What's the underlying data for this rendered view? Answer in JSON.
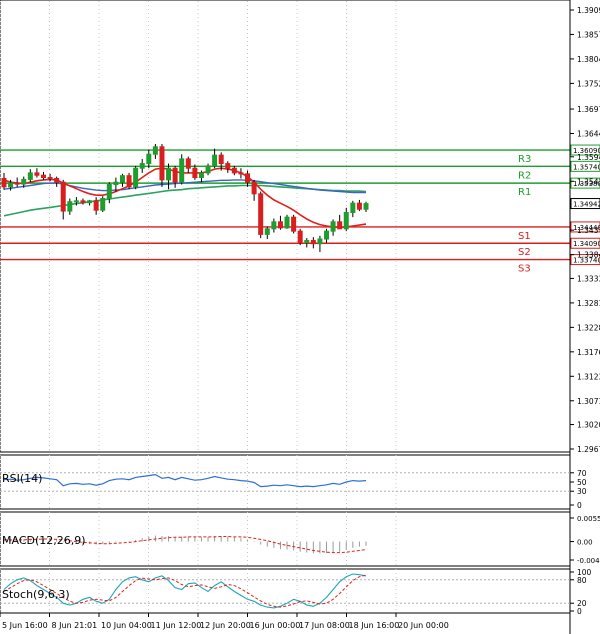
{
  "chart_data": [
    {
      "type": "candlestick",
      "panel": "price",
      "y_ticks": [
        "1.39095",
        "1.38570",
        "1.38045",
        "1.37520",
        "1.36970",
        "1.36445",
        "1.35945",
        "1.35420",
        "1.34895",
        "1.34370",
        "1.33845",
        "1.33335",
        "1.32810",
        "1.32285",
        "1.31760",
        "1.31235",
        "1.30710",
        "1.30200",
        "1.29675"
      ],
      "ylim": [
        1.29675,
        1.39095
      ],
      "x_ticks": [
        "5 Jun 16:00",
        "8 Jun 21:01",
        "10 Jun 04:00",
        "11 Jun 12:00",
        "12 Jun 20:00",
        "16 Jun 00:00",
        "17 Jun 08:00",
        "18 Jun 16:00",
        "20 Jun 00:00"
      ],
      "current_price": "1.34942",
      "levels": [
        {
          "name": "R3",
          "value": 1.3609,
          "label": "1.36090",
          "kind": "resistance",
          "color": "#1f9d2e"
        },
        {
          "name": "R2",
          "value": 1.3574,
          "label": "1.35740",
          "kind": "resistance",
          "color": "#1f9d2e"
        },
        {
          "name": "R1",
          "value": 1.3538,
          "label": "1.35380",
          "kind": "resistance",
          "color": "#1f9d2e"
        },
        {
          "name": "S1",
          "value": 1.3444,
          "label": "1.34440",
          "kind": "support",
          "color": "#d81e1e"
        },
        {
          "name": "S2",
          "value": 1.3409,
          "label": "1.34090",
          "kind": "support",
          "color": "#d81e1e"
        },
        {
          "name": "S3",
          "value": 1.3374,
          "label": "1.33740",
          "kind": "support",
          "color": "#d81e1e"
        }
      ],
      "candles": [
        {
          "o": 1.3548,
          "h": 1.356,
          "l": 1.3524,
          "c": 1.353
        },
        {
          "o": 1.353,
          "h": 1.3545,
          "l": 1.3522,
          "c": 1.3538
        },
        {
          "o": 1.3538,
          "h": 1.355,
          "l": 1.353,
          "c": 1.3536
        },
        {
          "o": 1.3536,
          "h": 1.3552,
          "l": 1.3528,
          "c": 1.3546
        },
        {
          "o": 1.3546,
          "h": 1.3568,
          "l": 1.354,
          "c": 1.356
        },
        {
          "o": 1.356,
          "h": 1.357,
          "l": 1.355,
          "c": 1.3555
        },
        {
          "o": 1.3555,
          "h": 1.3562,
          "l": 1.3545,
          "c": 1.355
        },
        {
          "o": 1.355,
          "h": 1.3558,
          "l": 1.3542,
          "c": 1.3548
        },
        {
          "o": 1.3548,
          "h": 1.3552,
          "l": 1.353,
          "c": 1.354
        },
        {
          "o": 1.354,
          "h": 1.3545,
          "l": 1.346,
          "c": 1.3478
        },
        {
          "o": 1.3478,
          "h": 1.3505,
          "l": 1.347,
          "c": 1.3498
        },
        {
          "o": 1.3498,
          "h": 1.3508,
          "l": 1.349,
          "c": 1.35
        },
        {
          "o": 1.35,
          "h": 1.3505,
          "l": 1.3492,
          "c": 1.3496
        },
        {
          "o": 1.3496,
          "h": 1.3502,
          "l": 1.349,
          "c": 1.35
        },
        {
          "o": 1.35,
          "h": 1.3508,
          "l": 1.347,
          "c": 1.348
        },
        {
          "o": 1.348,
          "h": 1.351,
          "l": 1.3476,
          "c": 1.3505
        },
        {
          "o": 1.3505,
          "h": 1.354,
          "l": 1.3495,
          "c": 1.3535
        },
        {
          "o": 1.3535,
          "h": 1.355,
          "l": 1.352,
          "c": 1.354
        },
        {
          "o": 1.354,
          "h": 1.3558,
          "l": 1.353,
          "c": 1.3554
        },
        {
          "o": 1.3554,
          "h": 1.356,
          "l": 1.3525,
          "c": 1.353
        },
        {
          "o": 1.353,
          "h": 1.3575,
          "l": 1.3525,
          "c": 1.357
        },
        {
          "o": 1.357,
          "h": 1.359,
          "l": 1.356,
          "c": 1.358
        },
        {
          "o": 1.358,
          "h": 1.361,
          "l": 1.357,
          "c": 1.36
        },
        {
          "o": 1.36,
          "h": 1.3622,
          "l": 1.359,
          "c": 1.3616
        },
        {
          "o": 1.3616,
          "h": 1.3622,
          "l": 1.353,
          "c": 1.3545
        },
        {
          "o": 1.3545,
          "h": 1.358,
          "l": 1.3525,
          "c": 1.357
        },
        {
          "o": 1.357,
          "h": 1.3575,
          "l": 1.3528,
          "c": 1.354
        },
        {
          "o": 1.354,
          "h": 1.36,
          "l": 1.3535,
          "c": 1.359
        },
        {
          "o": 1.359,
          "h": 1.3595,
          "l": 1.356,
          "c": 1.357
        },
        {
          "o": 1.357,
          "h": 1.3578,
          "l": 1.3545,
          "c": 1.355
        },
        {
          "o": 1.355,
          "h": 1.3565,
          "l": 1.354,
          "c": 1.356
        },
        {
          "o": 1.356,
          "h": 1.358,
          "l": 1.3555,
          "c": 1.3575
        },
        {
          "o": 1.3575,
          "h": 1.3612,
          "l": 1.357,
          "c": 1.3598
        },
        {
          "o": 1.3598,
          "h": 1.3604,
          "l": 1.3565,
          "c": 1.358
        },
        {
          "o": 1.358,
          "h": 1.3585,
          "l": 1.356,
          "c": 1.357
        },
        {
          "o": 1.357,
          "h": 1.3575,
          "l": 1.3555,
          "c": 1.356
        },
        {
          "o": 1.356,
          "h": 1.357,
          "l": 1.3548,
          "c": 1.3558
        },
        {
          "o": 1.3558,
          "h": 1.3565,
          "l": 1.353,
          "c": 1.354
        },
        {
          "o": 1.354,
          "h": 1.3545,
          "l": 1.35,
          "c": 1.3515
        },
        {
          "o": 1.3515,
          "h": 1.352,
          "l": 1.342,
          "c": 1.3428
        },
        {
          "o": 1.3428,
          "h": 1.3445,
          "l": 1.3418,
          "c": 1.344
        },
        {
          "o": 1.344,
          "h": 1.3462,
          "l": 1.3432,
          "c": 1.3455
        },
        {
          "o": 1.3455,
          "h": 1.3468,
          "l": 1.3438,
          "c": 1.3442
        },
        {
          "o": 1.3442,
          "h": 1.347,
          "l": 1.344,
          "c": 1.3465
        },
        {
          "o": 1.3465,
          "h": 1.347,
          "l": 1.343,
          "c": 1.3435
        },
        {
          "o": 1.3435,
          "h": 1.344,
          "l": 1.3405,
          "c": 1.341
        },
        {
          "o": 1.341,
          "h": 1.342,
          "l": 1.34,
          "c": 1.3415
        },
        {
          "o": 1.3415,
          "h": 1.3422,
          "l": 1.3398,
          "c": 1.3408
        },
        {
          "o": 1.3408,
          "h": 1.3425,
          "l": 1.339,
          "c": 1.3418
        },
        {
          "o": 1.3418,
          "h": 1.344,
          "l": 1.341,
          "c": 1.3435
        },
        {
          "o": 1.3435,
          "h": 1.346,
          "l": 1.3425,
          "c": 1.3455
        },
        {
          "o": 1.3455,
          "h": 1.347,
          "l": 1.344,
          "c": 1.344
        },
        {
          "o": 1.344,
          "h": 1.3485,
          "l": 1.3435,
          "c": 1.3475
        },
        {
          "o": 1.3475,
          "h": 1.35,
          "l": 1.3465,
          "c": 1.3495
        },
        {
          "o": 1.3495,
          "h": 1.3502,
          "l": 1.3478,
          "c": 1.3482
        },
        {
          "o": 1.3482,
          "h": 1.3498,
          "l": 1.3476,
          "c": 1.3494
        }
      ],
      "ma_red": [
        1.3545,
        1.354,
        1.3538,
        1.3537,
        1.354,
        1.3543,
        1.3545,
        1.3546,
        1.3545,
        1.3538,
        1.3532,
        1.3526,
        1.352,
        1.3515,
        1.3512,
        1.3512,
        1.3515,
        1.352,
        1.3526,
        1.3532,
        1.354,
        1.355,
        1.356,
        1.3568,
        1.357,
        1.3568,
        1.3563,
        1.356,
        1.356,
        1.356,
        1.356,
        1.3563,
        1.3568,
        1.357,
        1.3568,
        1.3565,
        1.356,
        1.3552,
        1.354,
        1.3525,
        1.3512,
        1.3502,
        1.3495,
        1.3488,
        1.348,
        1.347,
        1.3461,
        1.3454,
        1.3449,
        1.3446,
        1.3444,
        1.3443,
        1.3444,
        1.3446,
        1.3448,
        1.345
      ],
      "ma_blue": [
        1.3525,
        1.3527,
        1.3529,
        1.3531,
        1.3533,
        1.3535,
        1.3537,
        1.3538,
        1.3538,
        1.3536,
        1.3533,
        1.353,
        1.3527,
        1.3525,
        1.3523,
        1.3522,
        1.3522,
        1.3523,
        1.3524,
        1.3526,
        1.3528,
        1.353,
        1.3532,
        1.3534,
        1.3535,
        1.3536,
        1.3537,
        1.3538,
        1.3539,
        1.354,
        1.3541,
        1.3542,
        1.3543,
        1.3544,
        1.3544,
        1.3545,
        1.3545,
        1.3544,
        1.3543,
        1.3541,
        1.3539,
        1.3537,
        1.3535,
        1.3533,
        1.3531,
        1.3529,
        1.3527,
        1.3525,
        1.3523,
        1.3522,
        1.3521,
        1.352,
        1.3519,
        1.3518,
        1.3518,
        1.3518
      ],
      "ma_green": [
        1.3468,
        1.3471,
        1.3474,
        1.3477,
        1.348,
        1.3482,
        1.3484,
        1.3486,
        1.3488,
        1.349,
        1.3492,
        1.3494,
        1.3496,
        1.3498,
        1.35,
        1.3502,
        1.3504,
        1.3506,
        1.3508,
        1.351,
        1.3512,
        1.3514,
        1.3516,
        1.3518,
        1.352,
        1.3522,
        1.3523,
        1.3524,
        1.3526,
        1.3527,
        1.3528,
        1.3529,
        1.353,
        1.3531,
        1.3532,
        1.3532,
        1.3533,
        1.3533,
        1.3533,
        1.3533,
        1.3532,
        1.3531,
        1.353,
        1.3529,
        1.3528,
        1.3527,
        1.3526,
        1.3525,
        1.3524,
        1.3523,
        1.3522,
        1.3522,
        1.3521,
        1.3521,
        1.3521,
        1.352
      ]
    },
    {
      "type": "line",
      "panel": "rsi",
      "label": "RSI(14)",
      "y_ticks": [
        "70",
        "50",
        "30",
        "0"
      ],
      "ylim": [
        0,
        100
      ],
      "series": [
        {
          "values": [
            55,
            56,
            54,
            55,
            58,
            60,
            59,
            57,
            55,
            42,
            46,
            47,
            45,
            46,
            43,
            46,
            53,
            56,
            57,
            55,
            60,
            62,
            64,
            66,
            58,
            60,
            55,
            60,
            57,
            54,
            55,
            58,
            62,
            59,
            56,
            55,
            53,
            52,
            49,
            40,
            41,
            43,
            42,
            44,
            42,
            40,
            41,
            40,
            42,
            44,
            47,
            45,
            50,
            53,
            52,
            53
          ]
        }
      ]
    },
    {
      "type": "bar",
      "panel": "macd",
      "label": "MACD(12,26,9)",
      "y_ticks": [
        "0.005556",
        "0.00",
        "-0.00435"
      ],
      "ylim": [
        -0.00435,
        0.005556
      ],
      "series": [
        {
          "values": [
            0.0005,
            0.0004,
            0.0004,
            0.0005,
            0.0006,
            0.0007,
            0.0007,
            0.0006,
            0.0005,
            -0.0002,
            -0.0004,
            -0.0005,
            -0.0006,
            -0.0006,
            -0.0007,
            -0.0006,
            -0.0004,
            -0.0002,
            0.0,
            0.0001,
            0.0004,
            0.0008,
            0.0011,
            0.0014,
            0.0013,
            0.0013,
            0.0011,
            0.0012,
            0.0012,
            0.0011,
            0.001,
            0.0011,
            0.0013,
            0.0013,
            0.0012,
            0.001,
            0.0008,
            0.0005,
            0.0001,
            -0.0007,
            -0.0012,
            -0.0015,
            -0.0018,
            -0.0019,
            -0.0021,
            -0.0024,
            -0.0026,
            -0.0028,
            -0.0028,
            -0.0027,
            -0.0025,
            -0.0024,
            -0.002,
            -0.0015,
            -0.0012,
            -0.001
          ]
        },
        {
          "values": [
            0.0004,
            0.0004,
            0.0004,
            0.0004,
            0.0005,
            0.0005,
            0.0006,
            0.0006,
            0.0005,
            0.0004,
            0.0002,
            0.0,
            -0.0002,
            -0.0003,
            -0.0004,
            -0.0005,
            -0.0005,
            -0.0004,
            -0.0003,
            -0.0002,
            0.0,
            0.0002,
            0.0004,
            0.0006,
            0.0008,
            0.0009,
            0.001,
            0.001,
            0.0011,
            0.0011,
            0.0011,
            0.0011,
            0.0011,
            0.0012,
            0.0012,
            0.0011,
            0.0011,
            0.001,
            0.0008,
            0.0005,
            0.0002,
            -0.0002,
            -0.0006,
            -0.0009,
            -0.0012,
            -0.0015,
            -0.0018,
            -0.0021,
            -0.0023,
            -0.0025,
            -0.0026,
            -0.0026,
            -0.0025,
            -0.0023,
            -0.0021,
            -0.0019
          ]
        }
      ]
    },
    {
      "type": "line",
      "panel": "stoch",
      "label": "Stoch(9,6,3)",
      "y_ticks": [
        "100",
        "80",
        "20",
        "0"
      ],
      "ylim": [
        0,
        100
      ],
      "series": [
        {
          "values": [
            55,
            70,
            80,
            85,
            78,
            65,
            55,
            45,
            35,
            20,
            15,
            20,
            30,
            35,
            25,
            20,
            30,
            55,
            75,
            85,
            88,
            80,
            75,
            85,
            90,
            78,
            60,
            55,
            70,
            72,
            60,
            50,
            65,
            75,
            62,
            50,
            40,
            30,
            25,
            15,
            10,
            8,
            12,
            20,
            30,
            25,
            15,
            12,
            20,
            35,
            55,
            75,
            88,
            95,
            93,
            90
          ]
        },
        {
          "values": [
            50,
            60,
            70,
            78,
            80,
            75,
            65,
            55,
            45,
            35,
            25,
            20,
            22,
            28,
            30,
            28,
            26,
            35,
            50,
            65,
            78,
            84,
            82,
            80,
            83,
            85,
            78,
            68,
            62,
            65,
            67,
            62,
            58,
            62,
            68,
            65,
            57,
            47,
            36,
            26,
            17,
            12,
            10,
            13,
            18,
            24,
            26,
            22,
            18,
            20,
            30,
            45,
            62,
            78,
            88,
            92
          ]
        }
      ]
    }
  ]
}
